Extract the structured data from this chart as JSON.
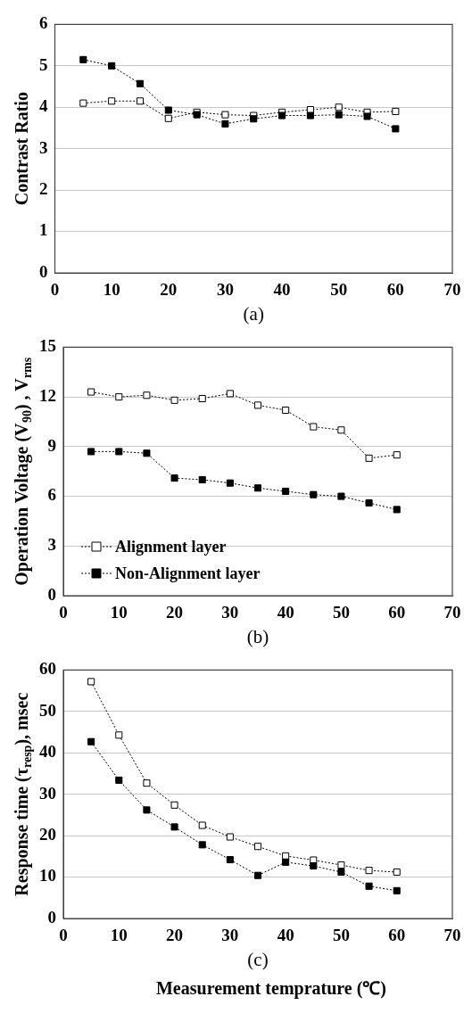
{
  "chart_data": [
    {
      "type": "line",
      "xlabel": "(a)",
      "ylabel": "Contrast Ratio",
      "x": [
        5,
        10,
        15,
        20,
        25,
        30,
        35,
        40,
        45,
        50,
        55,
        60
      ],
      "xlim": [
        0,
        70
      ],
      "xticks": [
        0,
        10,
        20,
        30,
        40,
        50,
        60,
        70
      ],
      "ylim": [
        0,
        6
      ],
      "yticks": [
        0,
        1,
        2,
        3,
        4,
        5,
        6
      ],
      "grid": "y",
      "marker": "square",
      "line_style": "dotted",
      "series": [
        {
          "color": "#ffffff",
          "values": [
            4.1,
            4.15,
            4.15,
            3.73,
            3.88,
            3.82,
            3.8,
            3.88,
            3.94,
            4.0,
            3.88,
            3.9
          ]
        },
        {
          "color": "#000000",
          "values": [
            5.15,
            5.0,
            4.57,
            3.93,
            3.82,
            3.6,
            3.72,
            3.8,
            3.8,
            3.82,
            3.78,
            3.48
          ]
        }
      ]
    },
    {
      "type": "line",
      "xlabel": "(b)",
      "ylabel": "Operation Voltage (V$_{90}$) , V$_{rms}$",
      "x": [
        5,
        10,
        15,
        20,
        25,
        30,
        35,
        40,
        45,
        50,
        55,
        60
      ],
      "xlim": [
        0,
        70
      ],
      "xticks": [
        0,
        10,
        20,
        30,
        40,
        50,
        60,
        70
      ],
      "ylim": [
        0,
        15
      ],
      "yticks": [
        0,
        3,
        6,
        9,
        12,
        15
      ],
      "grid": "y",
      "marker": "square",
      "line_style": "dotted",
      "legend": "bottom left",
      "series": [
        {
          "name": "Alignment layer",
          "color": "#ffffff",
          "values": [
            12.3,
            12.0,
            12.1,
            11.8,
            11.9,
            12.2,
            11.5,
            11.2,
            10.2,
            10.0,
            8.3,
            8.5
          ]
        },
        {
          "name": "Non-Alignment layer",
          "color": "#000000",
          "values": [
            8.7,
            8.7,
            8.6,
            7.1,
            7.0,
            6.8,
            6.5,
            6.3,
            6.1,
            6.0,
            5.6,
            5.2
          ]
        }
      ]
    },
    {
      "type": "line",
      "xlabel": "(c)",
      "ylabel": "Response time (τ$_{resp}$), msec",
      "x": [
        5,
        10,
        15,
        20,
        25,
        30,
        35,
        40,
        45,
        50,
        55,
        60
      ],
      "xlim": [
        0,
        70
      ],
      "xticks": [
        0,
        10,
        20,
        30,
        40,
        50,
        60,
        70
      ],
      "ylim": [
        0,
        60
      ],
      "yticks": [
        0,
        10,
        20,
        30,
        40,
        50,
        60
      ],
      "grid": "y",
      "marker": "square",
      "line_style": "dotted",
      "annotations": [
        "Measurement temprature (℃)"
      ],
      "series": [
        {
          "color": "#ffffff",
          "values": [
            57.2,
            44.3,
            32.7,
            27.4,
            22.5,
            19.7,
            17.4,
            15.1,
            14.1,
            12.9,
            11.6,
            11.2
          ]
        },
        {
          "color": "#000000",
          "values": [
            42.7,
            33.4,
            26.2,
            22.1,
            17.8,
            14.2,
            10.4,
            13.6,
            12.7,
            11.2,
            7.8,
            6.7
          ]
        }
      ]
    }
  ]
}
